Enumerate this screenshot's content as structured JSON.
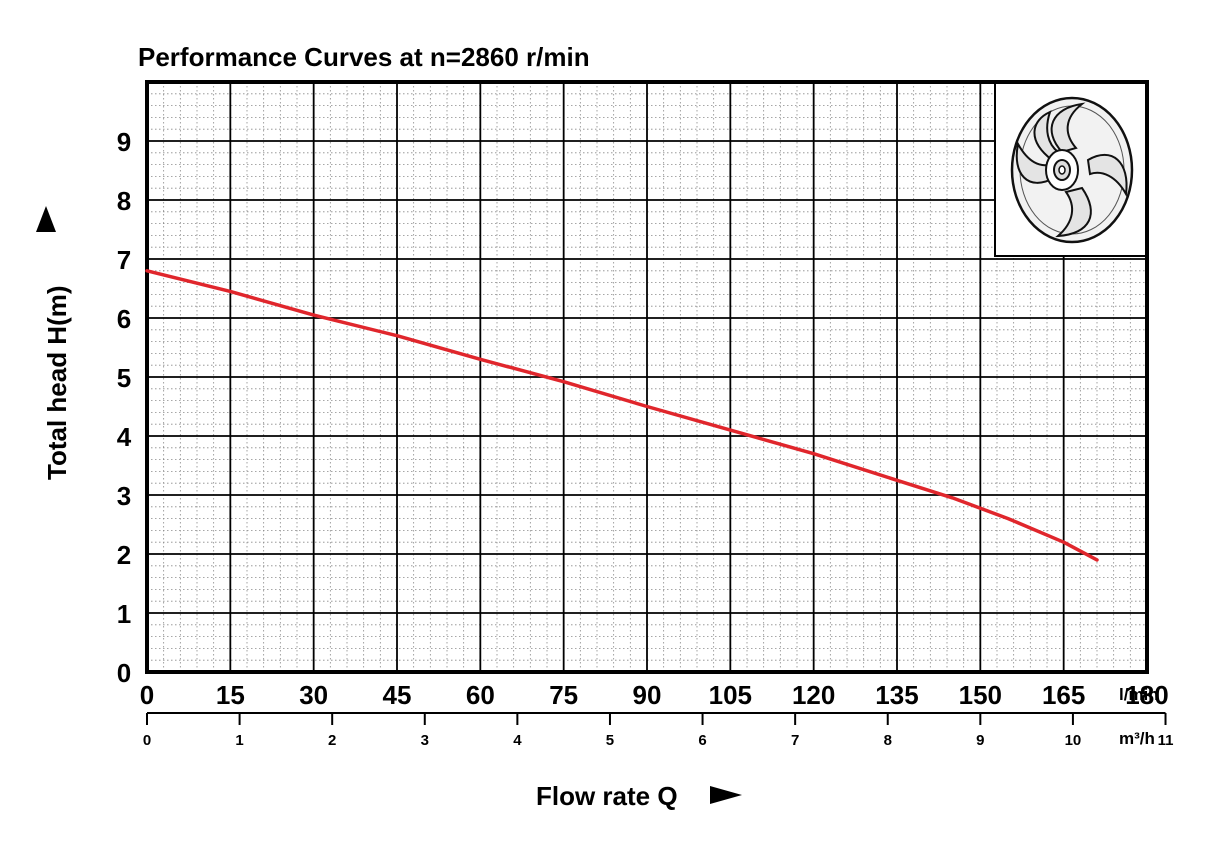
{
  "chart_data": {
    "type": "line",
    "title": "Performance Curves at n=2860 r/min",
    "ylabel": "Total head H(m)",
    "xlabel": "Flow rate Q",
    "xlim": [
      0,
      180
    ],
    "ylim": [
      0,
      10
    ],
    "grid": true,
    "x_unit_primary": "l/min",
    "x_unit_secondary": "m³/h",
    "x_ticks_lmin": [
      "0",
      "15",
      "30",
      "45",
      "60",
      "75",
      "90",
      "105",
      "120",
      "135",
      "150",
      "165",
      "180"
    ],
    "x_ticks_m3h": [
      "0",
      "1",
      "2",
      "3",
      "4",
      "5",
      "6",
      "7",
      "8",
      "9",
      "10",
      "11"
    ],
    "y_ticks": [
      "0",
      "1",
      "2",
      "3",
      "4",
      "5",
      "6",
      "7",
      "8",
      "9"
    ],
    "series": [
      {
        "color": "#e0262c",
        "x": [
          0,
          15,
          30,
          45,
          60,
          75,
          90,
          105,
          120,
          135,
          145,
          155,
          165,
          171
        ],
        "y": [
          6.8,
          6.45,
          6.05,
          5.7,
          5.3,
          4.92,
          4.5,
          4.1,
          3.7,
          3.25,
          2.95,
          2.6,
          2.2,
          1.9
        ]
      }
    ],
    "inset_image": "impeller-icon"
  }
}
